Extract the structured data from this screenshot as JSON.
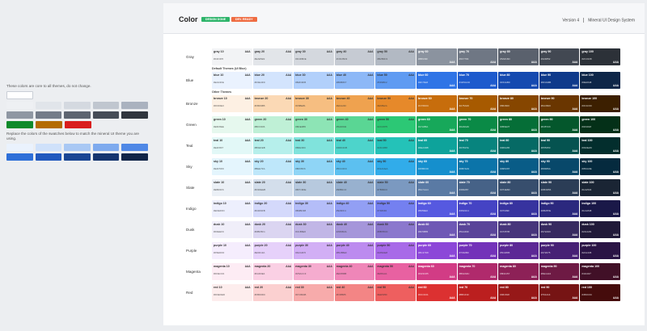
{
  "left": {
    "note": "These colors are core to all themes, do not change.",
    "note2": "Replace the colors of the swatches below to match the mineral UI theme you are using.",
    "core_rows": [
      [
        "#ffffff"
      ],
      [
        "#eef0f3",
        "#e1e5ea",
        "#d4d9e0",
        "#c0c6cf",
        "#aab2bf"
      ],
      [
        "#8f97a3",
        "#747c89",
        "#5d6470",
        "#454c57",
        "#30353d"
      ],
      [
        "#0d8a2b",
        "#b36b00",
        "#d91e1e"
      ]
    ],
    "theme_rows": [
      [
        "#eaf2fd",
        "#cfe1fa",
        "#a9c8f4",
        "#7eaaee",
        "#4f88e6"
      ],
      [
        "#2e6fd8",
        "#2159be",
        "#1a4694",
        "#153570",
        "#112548"
      ]
    ]
  },
  "header": {
    "title": "Color",
    "badge_design": "DESIGN DONE",
    "badge_dev": "DEV. READY",
    "version": "Version 4",
    "system": "Mineral UI Design System"
  },
  "theme_base_label": "Theme Base Color",
  "default_theme_label": "Default Themes (UI Blue)",
  "other_themes_label": "Other Themes",
  "families": [
    {
      "label": "Gray",
      "key": "gray",
      "colors": [
        "#f2f3f5",
        "#e2e5e9",
        "#d4d8de",
        "#c6cbd3",
        "#b2b9c3",
        "#8b939f",
        "#6f7784",
        "#5a616d",
        "#424852",
        "#2c3138"
      ]
    },
    {
      "label": "Blue",
      "key": "blue",
      "colors": [
        "#eaf2fe",
        "#d3e4fd",
        "#b2d0fb",
        "#8db8f7",
        "#5f9bf2",
        "#2f74e6",
        "#1d5acd",
        "#154ab0",
        "#0f3a8b",
        "#0e2648"
      ]
    },
    {
      "label": "Bronze",
      "key": "bronze",
      "colors": [
        "#fdf0e3",
        "#fbd9b5",
        "#f6be81",
        "#efa24f",
        "#e6892a",
        "#c76d0c",
        "#a75a00",
        "#864600",
        "#6a3600",
        "#3c1f00"
      ]
    },
    {
      "label": "Green",
      "key": "green",
      "colors": [
        "#e6f8ee",
        "#bff0d6",
        "#8de4b5",
        "#5ad694",
        "#2cc875",
        "#17a85a",
        "#0a8a46",
        "#056e37",
        "#04572c",
        "#043018"
      ]
    },
    {
      "label": "Teal",
      "key": "teal",
      "colors": [
        "#e2f8f7",
        "#b6efeb",
        "#80e3dc",
        "#4dd4cb",
        "#24c2b8",
        "#0ea39b",
        "#07847e",
        "#066a65",
        "#055350",
        "#032e2d"
      ]
    },
    {
      "label": "Sky",
      "key": "sky",
      "colors": [
        "#e4f5fd",
        "#bee7fa",
        "#8fd5f6",
        "#5cc0f0",
        "#31acea",
        "#158fcd",
        "#0b74a9",
        "#095c87",
        "#08486a",
        "#052a3e"
      ]
    },
    {
      "label": "Slate",
      "key": "slate",
      "colors": [
        "#ebf0f6",
        "#d3deeb",
        "#b7c9de",
        "#98b1cf",
        "#7b99c0",
        "#5a7aa4",
        "#466287",
        "#374e6d",
        "#2b3d56",
        "#1a2534"
      ]
    },
    {
      "label": "Indigo",
      "key": "indigo",
      "colors": [
        "#edeffd",
        "#d4d9fb",
        "#b4bdf8",
        "#929ff4",
        "#7480f0",
        "#5659e0",
        "#4543c4",
        "#37339f",
        "#2b287e",
        "#1a1848"
      ]
    },
    {
      "label": "Dusk",
      "key": "dusk",
      "colors": [
        "#f0eef9",
        "#dbd5f1",
        "#c1b6e6",
        "#a596da",
        "#8b78cd",
        "#6f58b5",
        "#5a4499",
        "#47357b",
        "#372a60",
        "#211a39"
      ]
    },
    {
      "label": "Purple",
      "key": "purple",
      "colors": [
        "#f5edfd",
        "#e6d1fa",
        "#d2aff5",
        "#bc8bef",
        "#a86ae8",
        "#8c47d8",
        "#7332b9",
        "#5c2895",
        "#472075",
        "#2a1445"
      ]
    },
    {
      "label": "Magenta",
      "key": "magenta",
      "colors": [
        "#fdecf4",
        "#fad0e4",
        "#f5accf",
        "#ef86b8",
        "#e861a1",
        "#d23c85",
        "#b02a6c",
        "#8d2157",
        "#6e1a44",
        "#411027"
      ]
    },
    {
      "label": "Red",
      "key": "red",
      "colors": [
        "#fdeded",
        "#fbd0d0",
        "#f7abab",
        "#f38585",
        "#ee5f5f",
        "#dc3131",
        "#bb1f1f",
        "#961818",
        "#761414",
        "#450c0c"
      ]
    }
  ],
  "steps": [
    "10",
    "20",
    "30",
    "40",
    "50",
    "60",
    "70",
    "80",
    "90",
    "100"
  ]
}
